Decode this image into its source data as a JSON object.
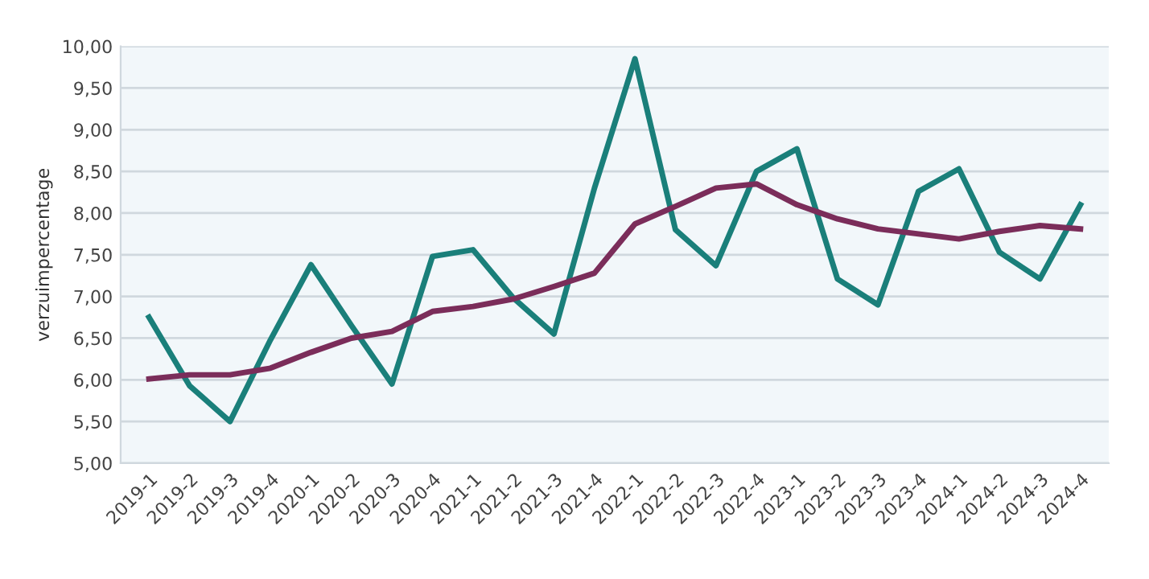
{
  "chart_data": {
    "type": "line",
    "ylabel": "verzuimpercentage",
    "categories": [
      "2019-1",
      "2019-2",
      "2019-3",
      "2019-4",
      "2020-1",
      "2020-2",
      "2020-3",
      "2020-4",
      "2021-1",
      "2021-2",
      "2021-3",
      "2021-4",
      "2022-1",
      "2022-2",
      "2022-3",
      "2022-4",
      "2023-1",
      "2023-2",
      "2023-3",
      "2023-4",
      "2024-1",
      "2024-2",
      "2024-3",
      "2024-4"
    ],
    "series": [
      {
        "color": "#1a7f7a",
        "values": [
          6.75,
          5.93,
          5.5,
          6.48,
          7.38,
          6.65,
          5.95,
          7.48,
          7.56,
          6.98,
          6.55,
          8.3,
          9.85,
          7.8,
          7.37,
          8.5,
          8.77,
          7.21,
          6.9,
          8.26,
          8.53,
          7.53,
          7.21,
          8.1
        ]
      },
      {
        "color": "#7b2d5a",
        "values": [
          6.01,
          6.06,
          6.06,
          6.14,
          6.33,
          6.5,
          6.58,
          6.82,
          6.88,
          6.97,
          7.12,
          7.28,
          7.87,
          8.08,
          8.3,
          8.35,
          8.1,
          7.93,
          7.81,
          7.75,
          7.69,
          7.78,
          7.85,
          7.81
        ]
      }
    ],
    "ylim": [
      5,
      10
    ],
    "yticks": [
      {
        "value": 5,
        "label": "5,00"
      },
      {
        "value": 5.5,
        "label": "5,50"
      },
      {
        "value": 6,
        "label": "6,00"
      },
      {
        "value": 6.5,
        "label": "6,50"
      },
      {
        "value": 7,
        "label": "7,00"
      },
      {
        "value": 7.5,
        "label": "7,50"
      },
      {
        "value": 8,
        "label": "8,00"
      },
      {
        "value": 8.5,
        "label": "8,50"
      },
      {
        "value": 9,
        "label": "9,00"
      },
      {
        "value": 9.5,
        "label": "9,50"
      },
      {
        "value": 10,
        "label": "10,00"
      }
    ],
    "grid": "y",
    "line_style": "solid",
    "marker": "none"
  }
}
